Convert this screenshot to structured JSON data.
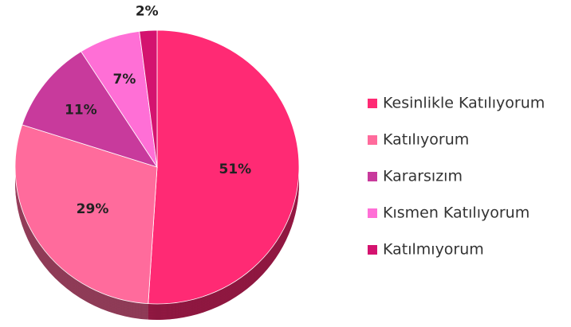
{
  "chart_data": {
    "type": "pie",
    "categories": [
      "Kesinlikle Katılıyorum",
      "Katılıyorum",
      "Kararsızım",
      "Kısmen Katılıyorum",
      "Katılmıyorum"
    ],
    "values": [
      51,
      29,
      11,
      7,
      2
    ],
    "value_labels": [
      "51%",
      "29%",
      "11%",
      "7%",
      "2%"
    ],
    "colors": [
      "#ff2a74",
      "#ff6b9c",
      "#c83a9c",
      "#ff6fd6",
      "#d4136f"
    ],
    "legend": "right"
  }
}
